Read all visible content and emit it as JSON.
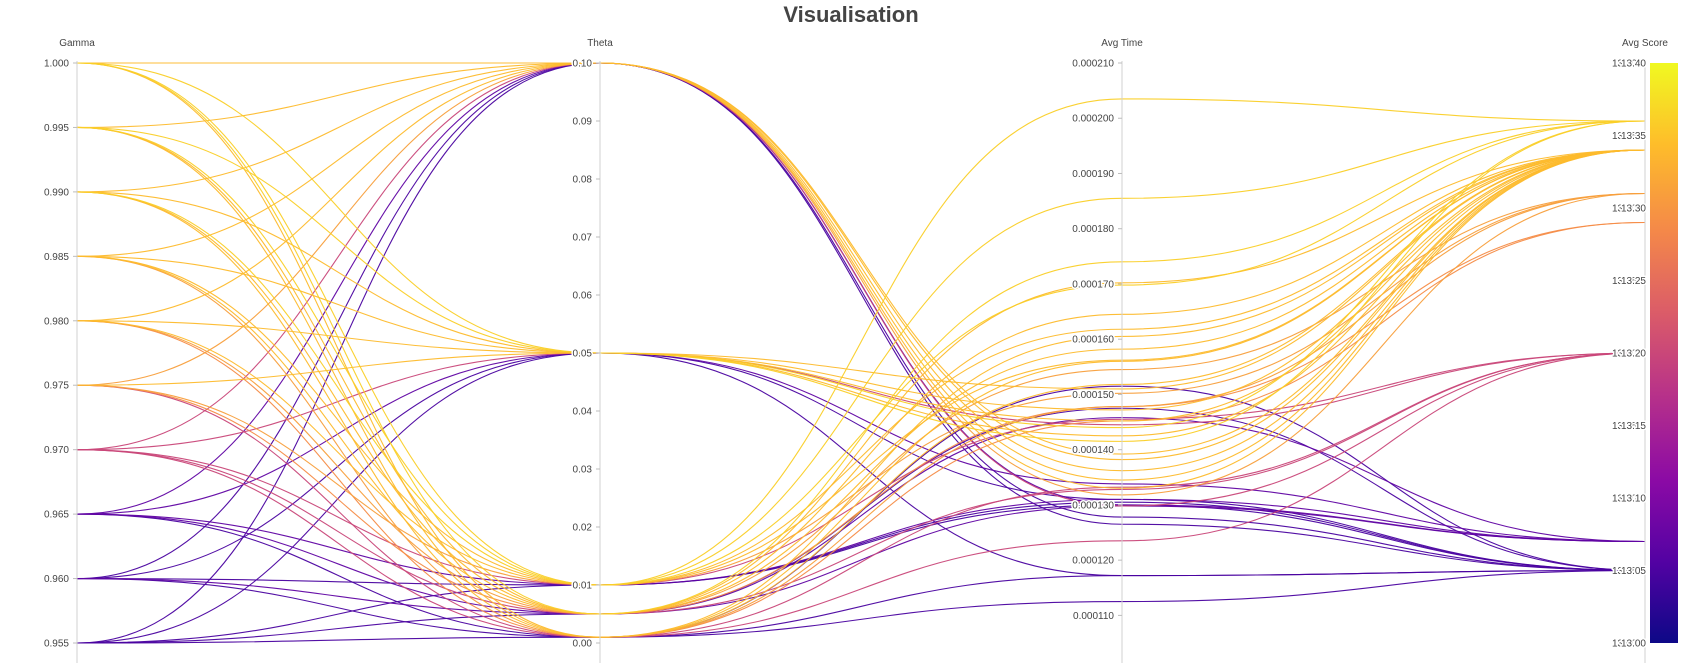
{
  "chart_data": {
    "type": "parallel-coordinates",
    "title": "Visualisation",
    "colorscale": [
      "#0d0887",
      "#5302a3",
      "#8b0aa5",
      "#b83289",
      "#db5c68",
      "#f48849",
      "#febd2a",
      "#f0f921"
    ],
    "colorbar": {
      "range": [
        13.0,
        13.4
      ],
      "ticks": [
        "13.00",
        "13.05",
        "13.10",
        "13.15",
        "13.20",
        "13.25",
        "13.30",
        "13.35",
        "13.40"
      ]
    },
    "dimensions": [
      {
        "label": "Gamma",
        "range": [
          0.955,
          1.0
        ],
        "ticks": [
          "0.955",
          "0.960",
          "0.965",
          "0.970",
          "0.975",
          "0.980",
          "0.985",
          "0.990",
          "0.995",
          "1.000"
        ]
      },
      {
        "label": "Theta",
        "range": [
          0.0,
          0.1
        ],
        "ticks": [
          "0.00",
          "0.01",
          "0.02",
          "0.03",
          "0.04",
          "0.05",
          "0.06",
          "0.07",
          "0.08",
          "0.09",
          "0.10"
        ]
      },
      {
        "label": "Avg Time",
        "range": [
          0.000105,
          0.00021
        ],
        "ticks": [
          "0.000110",
          "0.000120",
          "0.000130",
          "0.000140",
          "0.000150",
          "0.000160",
          "0.000170",
          "0.000180",
          "0.000190",
          "0.000200",
          "0.000210"
        ]
      },
      {
        "label": "Avg Score",
        "range": [
          13.0,
          13.4
        ],
        "ticks": [
          "13.00",
          "13.05",
          "13.10",
          "13.15",
          "13.20",
          "13.25",
          "13.30",
          "13.35",
          "13.40"
        ]
      }
    ],
    "series": [
      {
        "values": [
          1.0,
          0.1,
          0.0001392,
          13.34
        ]
      },
      {
        "values": [
          1.0,
          0.05,
          0.000144,
          13.36
        ]
      },
      {
        "values": [
          1.0,
          0.01,
          0.0002035,
          13.36
        ]
      },
      {
        "values": [
          1.0,
          0.005,
          0.000174,
          13.36
        ]
      },
      {
        "values": [
          1.0,
          0.001,
          0.0001605,
          13.34
        ]
      },
      {
        "values": [
          0.995,
          0.1,
          0.0001362,
          13.34
        ]
      },
      {
        "values": [
          0.995,
          0.05,
          0.0001415,
          13.36
        ]
      },
      {
        "values": [
          0.995,
          0.01,
          0.0001855,
          13.36
        ]
      },
      {
        "values": [
          0.995,
          0.005,
          0.0001702,
          13.34
        ]
      },
      {
        "values": [
          0.995,
          0.001,
          0.000156,
          13.34
        ]
      },
      {
        "values": [
          0.99,
          0.1,
          0.0001382,
          13.34
        ]
      },
      {
        "values": [
          0.99,
          0.05,
          0.0001452,
          13.34
        ]
      },
      {
        "values": [
          0.99,
          0.01,
          0.0001698,
          13.36
        ]
      },
      {
        "values": [
          0.99,
          0.005,
          0.0001645,
          13.34
        ]
      },
      {
        "values": [
          0.99,
          0.001,
          0.0001518,
          13.34
        ]
      },
      {
        "values": [
          0.985,
          0.1,
          0.0001345,
          13.34
        ]
      },
      {
        "values": [
          0.985,
          0.05,
          0.000151,
          13.34
        ]
      },
      {
        "values": [
          0.985,
          0.01,
          0.0001618,
          13.34
        ]
      },
      {
        "values": [
          0.985,
          0.005,
          0.0001582,
          13.34
        ]
      },
      {
        "values": [
          0.985,
          0.001,
          0.0001478,
          13.31
        ]
      },
      {
        "values": [
          0.98,
          0.1,
          0.000133,
          13.34
        ]
      },
      {
        "values": [
          0.98,
          0.05,
          0.0001472,
          13.34
        ]
      },
      {
        "values": [
          0.98,
          0.01,
          0.0001562,
          13.34
        ]
      },
      {
        "values": [
          0.98,
          0.005,
          0.0001545,
          13.31
        ]
      },
      {
        "values": [
          0.98,
          0.001,
          0.0001452,
          13.29
        ]
      },
      {
        "values": [
          0.975,
          0.1,
          0.0001318,
          13.31
        ]
      },
      {
        "values": [
          0.975,
          0.05,
          0.0001425,
          13.34
        ]
      },
      {
        "values": [
          0.975,
          0.01,
          0.0001502,
          13.31
        ]
      },
      {
        "values": [
          0.975,
          0.005,
          0.0001478,
          13.29
        ]
      },
      {
        "values": [
          0.975,
          0.001,
          0.0001332,
          13.2
        ]
      },
      {
        "values": [
          0.97,
          0.1,
          0.0001298,
          13.2
        ]
      },
      {
        "values": [
          0.97,
          0.05,
          0.0001445,
          13.2
        ]
      },
      {
        "values": [
          0.97,
          0.01,
          0.0001455,
          13.2
        ]
      },
      {
        "values": [
          0.97,
          0.005,
          0.0001328,
          13.2
        ]
      },
      {
        "values": [
          0.97,
          0.001,
          0.0001235,
          13.2
        ]
      },
      {
        "values": [
          0.965,
          0.1,
          0.00013,
          13.07
        ]
      },
      {
        "values": [
          0.965,
          0.05,
          0.0001338,
          13.07
        ]
      },
      {
        "values": [
          0.965,
          0.01,
          0.000131,
          13.07
        ]
      },
      {
        "values": [
          0.965,
          0.005,
          0.0001298,
          13.07
        ]
      },
      {
        "values": [
          0.965,
          0.001,
          0.0001515,
          13.05
        ]
      },
      {
        "values": [
          0.96,
          0.1,
          0.0001278,
          13.05
        ]
      },
      {
        "values": [
          0.96,
          0.05,
          0.000131,
          13.05
        ]
      },
      {
        "values": [
          0.96,
          0.01,
          0.0001305,
          13.05
        ]
      },
      {
        "values": [
          0.96,
          0.005,
          0.0001458,
          13.07
        ]
      },
      {
        "values": [
          0.96,
          0.001,
          0.0001172,
          13.05
        ]
      },
      {
        "values": [
          0.955,
          0.1,
          0.0001265,
          13.05
        ]
      },
      {
        "values": [
          0.955,
          0.05,
          0.0001172,
          13.05
        ]
      },
      {
        "values": [
          0.955,
          0.01,
          0.00013,
          13.05
        ]
      },
      {
        "values": [
          0.955,
          0.005,
          0.0001475,
          13.05
        ]
      },
      {
        "values": [
          0.955,
          0.001,
          0.0001125,
          13.05
        ]
      }
    ]
  }
}
